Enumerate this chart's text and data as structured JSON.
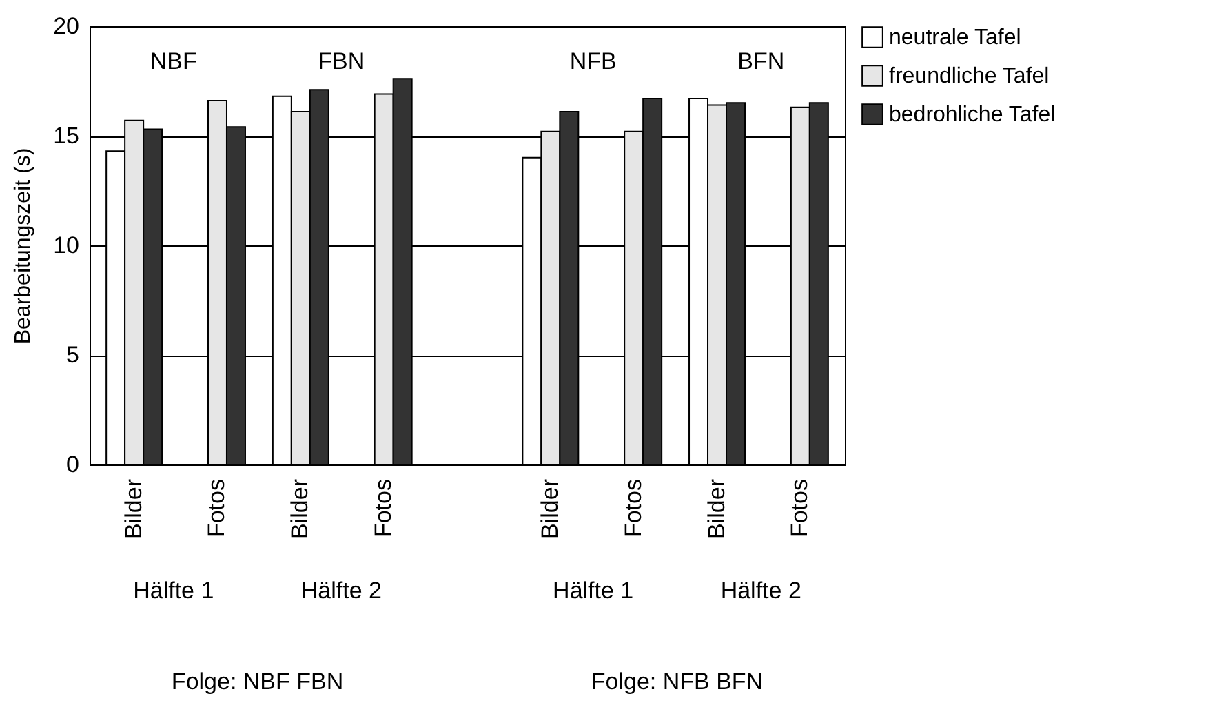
{
  "chart_data": {
    "type": "bar",
    "ylabel": "Bearbeitungszeit (s)",
    "categories": [
      "Bilder",
      "Fotos",
      "Bilder",
      "Fotos",
      null,
      "Bilder",
      "Fotos",
      "Bilder",
      "Fotos"
    ],
    "series": [
      {
        "name": "neutrale Tafel",
        "color": "#ffffff",
        "values": [
          14.3,
          null,
          16.8,
          null,
          null,
          14.0,
          null,
          16.7,
          null
        ]
      },
      {
        "name": "freundliche Tafel",
        "color": "#e6e6e6",
        "values": [
          15.7,
          16.6,
          16.1,
          16.9,
          null,
          15.2,
          15.2,
          16.4,
          16.3
        ]
      },
      {
        "name": "bedrohliche Tafel",
        "color": "#333333",
        "values": [
          15.3,
          15.4,
          17.1,
          17.6,
          null,
          16.1,
          16.7,
          16.5,
          16.5
        ]
      }
    ],
    "ylim": [
      0,
      20
    ],
    "yticks": [
      0,
      5,
      10,
      15,
      20
    ],
    "grid": "y",
    "legend": "right",
    "annotations": [
      "NBF",
      "FBN",
      "NFB",
      "BFN",
      "Hälfte 1",
      "Hälfte 2",
      "Hälfte 1",
      "Hälfte 2",
      "Folge: NBF FBN",
      "Folge: NFB BFN"
    ]
  }
}
